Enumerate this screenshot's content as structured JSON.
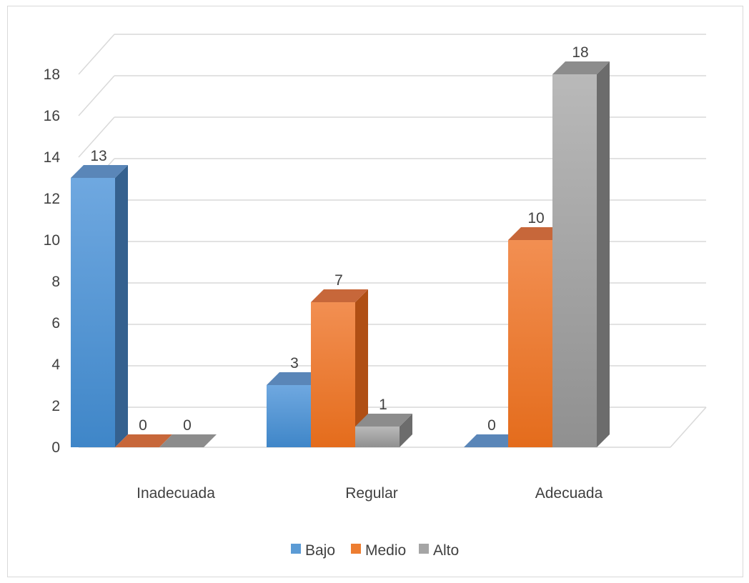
{
  "chart_data": {
    "type": "bar",
    "style": "3d-clustered-column",
    "categories": [
      "Inadecuada",
      "Regular",
      "Adecuada"
    ],
    "series": [
      {
        "name": "Bajo",
        "values": [
          13,
          3,
          0
        ],
        "color": "#5b9bd5"
      },
      {
        "name": "Medio",
        "values": [
          0,
          7,
          10
        ],
        "color": "#ed7d31"
      },
      {
        "name": "Alto",
        "values": [
          0,
          1,
          18
        ],
        "color": "#a5a5a5"
      }
    ],
    "y_ticks": [
      "0",
      "2",
      "4",
      "6",
      "8",
      "10",
      "12",
      "14",
      "16",
      "18"
    ],
    "ylim": [
      0,
      18
    ],
    "grid": true,
    "legend_position": "bottom",
    "data_labels": true
  }
}
